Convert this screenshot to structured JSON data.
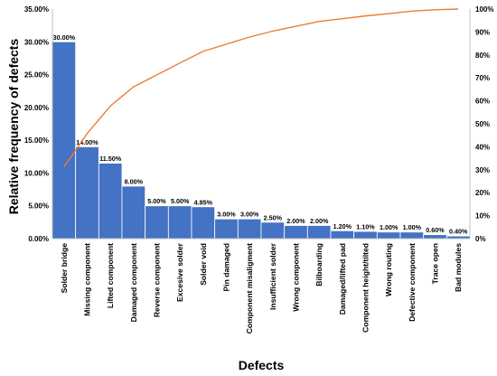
{
  "chart_data": {
    "type": "bar",
    "xlabel": "Defects",
    "ylabel": "Relative frequency of defects",
    "ylim": [
      0,
      35
    ],
    "y2lim": [
      0,
      100
    ],
    "yticks": [
      "0.00%",
      "5.00%",
      "10.00%",
      "15.00%",
      "20.00%",
      "25.00%",
      "30.00%",
      "35.00%"
    ],
    "y2ticks": [
      "0%",
      "10%",
      "20%",
      "30%",
      "40%",
      "50%",
      "60%",
      "70%",
      "80%",
      "90%",
      "100%"
    ],
    "grid": false,
    "legend": "none",
    "bar_color": "#4472c4",
    "line_color": "#ed7d31",
    "categories": [
      "Solder bridge",
      "Missing component",
      "Lifted component",
      "Damaged component",
      "Reverse component",
      "Excesive solder",
      "Solder void",
      "Pin damaged",
      "Component misaligment",
      "Insufficient solder",
      "Wrong component",
      "Bilboarding",
      "Damaged/lifted pad",
      "Component height/tilted",
      "Wrong routing",
      "Defective component",
      "Trace open",
      "Bad modules"
    ],
    "values": [
      30.0,
      14.0,
      11.5,
      8.0,
      5.0,
      5.0,
      4.85,
      3.0,
      3.0,
      2.5,
      2.0,
      2.0,
      1.2,
      1.1,
      1.0,
      1.0,
      0.6,
      0.4
    ],
    "value_labels": [
      "30.00%",
      "14.00%",
      "11.50%",
      "8.00%",
      "5.00%",
      "5.00%",
      "4.85%",
      "3.00%",
      "3.00%",
      "2.50%",
      "2.00%",
      "2.00%",
      "1.20%",
      "1.10%",
      "1.00%",
      "1.00%",
      "0.60%",
      "0.40%"
    ],
    "cumulative": [
      31.2,
      45.8,
      57.8,
      66.1,
      71.3,
      76.5,
      81.6,
      84.7,
      87.8,
      90.4,
      92.5,
      94.6,
      95.8,
      97.0,
      98.0,
      99.1,
      99.7,
      100.0
    ]
  }
}
